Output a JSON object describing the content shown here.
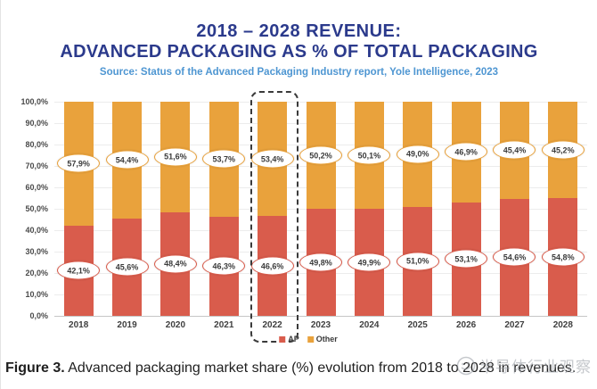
{
  "header": {
    "title_line1": "2018 – 2028 REVENUE:",
    "title_line2": "ADVANCED PACKAGING AS % OF TOTAL PACKAGING",
    "source": "Source: Status of the Advanced Packaging Industry report, Yole Intelligence, 2023"
  },
  "chart_data": {
    "type": "bar",
    "stacked": true,
    "categories": [
      "2018",
      "2019",
      "2020",
      "2021",
      "2022",
      "2023",
      "2024",
      "2025",
      "2026",
      "2027",
      "2028"
    ],
    "series": [
      {
        "name": "AP",
        "color": "#d95c4c",
        "values": [
          42.1,
          45.6,
          48.4,
          46.3,
          46.6,
          49.8,
          49.9,
          51.0,
          53.1,
          54.6,
          54.8
        ],
        "labels": [
          "42,1%",
          "45,6%",
          "48,4%",
          "46,3%",
          "46,6%",
          "49,8%",
          "49,9%",
          "51,0%",
          "53,1%",
          "54,6%",
          "54,8%"
        ]
      },
      {
        "name": "Other",
        "color": "#e9a23c",
        "values": [
          57.9,
          54.4,
          51.6,
          53.7,
          53.4,
          50.2,
          50.1,
          49.0,
          46.9,
          45.4,
          45.2
        ],
        "labels": [
          "57,9%",
          "54,4%",
          "51,6%",
          "53,7%",
          "53,4%",
          "50,2%",
          "50,1%",
          "49,0%",
          "46,9%",
          "45,4%",
          "45,2%"
        ]
      }
    ],
    "y_ticks": [
      "100,0%",
      "90,0%",
      "80,0%",
      "70,0%",
      "60,0%",
      "50,0%",
      "40,0%",
      "30,0%",
      "20,0%",
      "10,0%",
      "0,0%"
    ],
    "ylim": [
      0,
      100
    ],
    "grid": true,
    "xlabel": "",
    "ylabel": "",
    "legend": [
      "AP",
      "Other"
    ],
    "legend_position": "bottom",
    "highlighted_category": "2022"
  },
  "caption": {
    "label": "Figure 3.",
    "text": " Advanced packaging market share (%) evolution from 2018 to 2028 in revenues."
  },
  "watermark": {
    "text": "半导体行业观察"
  }
}
